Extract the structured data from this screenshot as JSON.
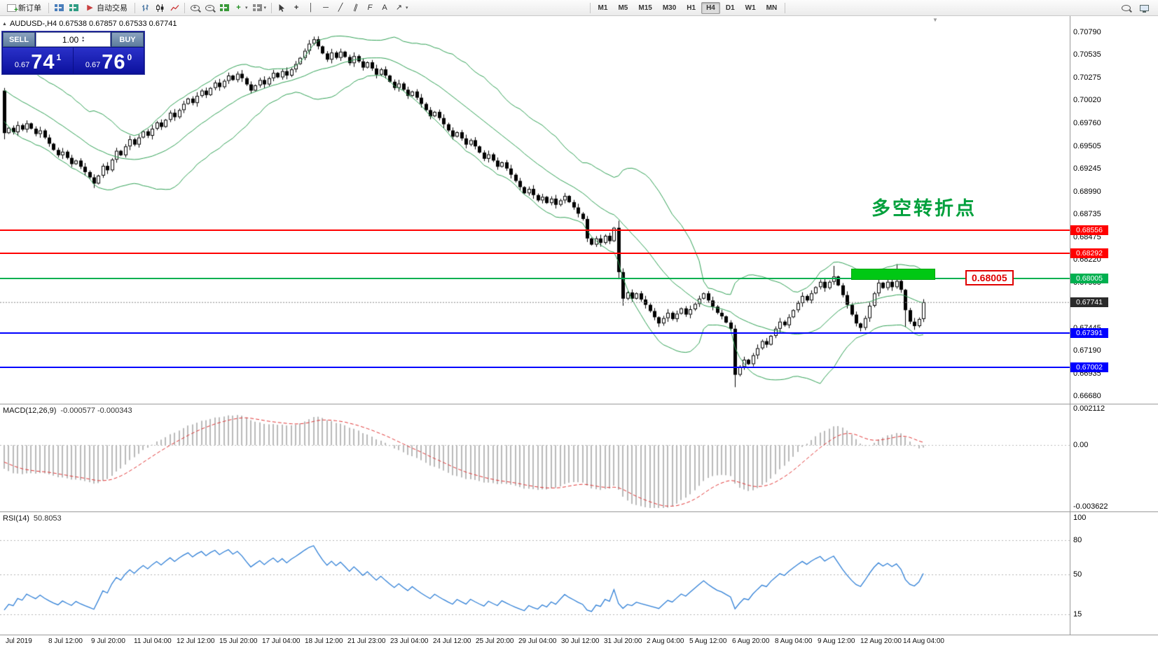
{
  "glyphs": {
    "collapse": "▲",
    "spin_up": "▴",
    "spin_down": "▾",
    "caret": "▾",
    "shift_marker": "▼"
  },
  "toolbar": {
    "groups": [
      {
        "name": "orders",
        "items": [
          {
            "name": "new-order-button",
            "label": "新订单",
            "icon": "new-order-icon"
          }
        ]
      },
      {
        "name": "trading",
        "items": [
          {
            "name": "charts-button",
            "icon": "chart-window-icon"
          },
          {
            "name": "profiles-button",
            "icon": "profiles-icon"
          },
          {
            "name": "auto-trading-button",
            "label": "自动交易",
            "icon": "play-icon"
          }
        ]
      },
      {
        "name": "chart-types",
        "items": [
          {
            "name": "bar-chart-type-button",
            "icon": "ohlc-bars-icon"
          },
          {
            "name": "candle-chart-type-button",
            "icon": "candles-icon"
          },
          {
            "name": "line-chart-type-button",
            "icon": "line-chart-icon"
          }
        ]
      },
      {
        "name": "zoom-tools",
        "items": [
          {
            "name": "zoom-in-button",
            "icon": "zoom-in-icon"
          },
          {
            "name": "zoom-out-button",
            "icon": "zoom-out-icon"
          },
          {
            "name": "tile-windows-button",
            "icon": "tile-windows-icon"
          },
          {
            "name": "indicators-button",
            "icon": "indicators-icon",
            "caret": true
          },
          {
            "name": "templates-button",
            "icon": "templates-icon",
            "caret": true
          }
        ]
      },
      {
        "name": "drawing-tools",
        "items": [
          {
            "name": "cursor-button",
            "icon": "cursor-icon"
          },
          {
            "name": "crosshair-button",
            "icon": "crosshair-icon"
          },
          {
            "name": "vertical-line-button",
            "icon": "vline-icon"
          },
          {
            "name": "horizontal-line-button",
            "icon": "hline-icon"
          },
          {
            "name": "trendline-button",
            "icon": "trendline-icon"
          },
          {
            "name": "channel-button",
            "icon": "channel-icon"
          },
          {
            "name": "fibonacci-button",
            "icon": "fibo-icon"
          },
          {
            "name": "text-button",
            "icon": "text-icon"
          },
          {
            "name": "arrows-button",
            "icon": "arrows-icon",
            "caret": true
          }
        ]
      }
    ],
    "timeframes": [
      "M1",
      "M5",
      "M15",
      "M30",
      "H1",
      "H4",
      "D1",
      "W1",
      "MN"
    ],
    "active_timeframe": "H4",
    "right_items": [
      {
        "name": "search-button",
        "icon": "search-icon"
      },
      {
        "name": "monitor-button",
        "icon": "monitor-icon"
      }
    ]
  },
  "quote_panel": {
    "symbol_line": "AUDUSD-,H4 0.67538 0.67857 0.67533 0.67741",
    "sell_label": "SELL",
    "buy_label": "BUY",
    "volume": "1.00",
    "sell_price": {
      "small": "0.67",
      "big": "74",
      "sup": "1"
    },
    "buy_price": {
      "small": "0.67",
      "big": "76",
      "sup": "0"
    }
  },
  "annotation": {
    "text": "多空转折点",
    "color": "#00a03c"
  },
  "price_label_box": "0.68005",
  "hlines": [
    {
      "price": 0.68556,
      "color": "#ff0000",
      "badge": "0.68556"
    },
    {
      "price": 0.68292,
      "color": "#ff0000",
      "badge": "0.68292"
    },
    {
      "price": 0.68005,
      "color": "#00b050",
      "badge": "0.68005"
    },
    {
      "price": 0.67391,
      "color": "#0000ff",
      "badge": "0.67391"
    },
    {
      "price": 0.67002,
      "color": "#0000ff",
      "badge": "0.67002"
    }
  ],
  "current_price": {
    "value": 0.67741,
    "badge": "0.67741"
  },
  "rectangle": {
    "x": 1215,
    "width": 120,
    "top_price": 0.6812,
    "bottom_price": 0.6799,
    "color": "#00c814"
  },
  "price_axis": {
    "min": 0.6668,
    "max": 0.7079,
    "ticks": [
      "0.70790",
      "0.70535",
      "0.70275",
      "0.70020",
      "0.69760",
      "0.69505",
      "0.69245",
      "0.68990",
      "0.68735",
      "0.68475",
      "0.68220",
      "0.67960",
      "0.67705",
      "0.67445",
      "0.67190",
      "0.66935",
      "0.66680"
    ]
  },
  "time_axis": [
    "Jul 2019",
    "8 Jul 12:00",
    "9 Jul 20:00",
    "11 Jul 04:00",
    "12 Jul 12:00",
    "15 Jul 20:00",
    "17 Jul 04:00",
    "18 Jul 12:00",
    "21 Jul 23:00",
    "23 Jul 04:00",
    "24 Jul 12:00",
    "25 Jul 20:00",
    "29 Jul 04:00",
    "30 Jul 12:00",
    "31 Jul 20:00",
    "2 Aug 04:00",
    "5 Aug 12:00",
    "6 Aug 20:00",
    "8 Aug 04:00",
    "9 Aug 12:00",
    "12 Aug 20:00",
    "14 Aug 04:00"
  ],
  "macd": {
    "label": "MACD(12,26,9)",
    "values": "-0.000577 -0.000343",
    "axis": [
      "0.002112",
      "0.00",
      "-0.003622"
    ],
    "max": 0.002112,
    "min": -0.003622
  },
  "rsi": {
    "label": "RSI(14)",
    "value": "50.8053",
    "axis": [
      "100",
      "80",
      "50",
      "15"
    ],
    "levels": [
      80,
      50,
      15
    ]
  },
  "chart_data": {
    "type": "candlestick",
    "symbol": "AUDUSD-",
    "timeframe": "H4",
    "title": "AUDUSD-,H4",
    "ylim": [
      0.6668,
      0.7079
    ],
    "bollinger": {
      "period": 20,
      "deviation": 2,
      "color": "#2fa054"
    },
    "warmup_closes": [
      0.7042,
      0.7036,
      0.7039,
      0.7031,
      0.7034,
      0.7026,
      0.7029,
      0.7021,
      0.7024,
      0.7016,
      0.7019,
      0.7011,
      0.7014,
      0.7006,
      0.7009,
      0.7001,
      0.7004,
      0.6996,
      0.6999,
      0.6991
    ],
    "closes": [
      0.6965,
      0.6971,
      0.6966,
      0.6974,
      0.6969,
      0.6976,
      0.697,
      0.6964,
      0.6968,
      0.696,
      0.6953,
      0.6946,
      0.694,
      0.6944,
      0.6937,
      0.693,
      0.6934,
      0.6927,
      0.6921,
      0.6915,
      0.6908,
      0.6917,
      0.6928,
      0.6923,
      0.6935,
      0.6945,
      0.694,
      0.695,
      0.6958,
      0.6952,
      0.696,
      0.6967,
      0.6962,
      0.697,
      0.6977,
      0.6972,
      0.698,
      0.6988,
      0.6983,
      0.6991,
      0.6998,
      0.7004,
      0.6999,
      0.7007,
      0.7013,
      0.7008,
      0.7016,
      0.7022,
      0.7017,
      0.7024,
      0.703,
      0.7025,
      0.7032,
      0.7027,
      0.702,
      0.7013,
      0.7019,
      0.7025,
      0.702,
      0.7027,
      0.7033,
      0.7028,
      0.7035,
      0.703,
      0.7037,
      0.7043,
      0.705,
      0.7058,
      0.7066,
      0.7071,
      0.7063,
      0.7055,
      0.7048,
      0.7056,
      0.705,
      0.7057,
      0.7051,
      0.7044,
      0.7052,
      0.7046,
      0.7039,
      0.7045,
      0.7038,
      0.7031,
      0.7037,
      0.703,
      0.7023,
      0.7016,
      0.7021,
      0.7014,
      0.7007,
      0.7012,
      0.7005,
      0.6998,
      0.6991,
      0.6984,
      0.6989,
      0.6982,
      0.6975,
      0.6968,
      0.6961,
      0.6966,
      0.6959,
      0.6952,
      0.6957,
      0.695,
      0.6943,
      0.6936,
      0.6941,
      0.6934,
      0.6927,
      0.6932,
      0.6925,
      0.6918,
      0.6911,
      0.6904,
      0.6897,
      0.6902,
      0.6895,
      0.6889,
      0.6893,
      0.6886,
      0.6891,
      0.6884,
      0.6889,
      0.6894,
      0.6887,
      0.6881,
      0.6874,
      0.6868,
      0.6846,
      0.6839,
      0.6846,
      0.6841,
      0.6849,
      0.6843,
      0.6858,
      0.6808,
      0.6778,
      0.6785,
      0.6778,
      0.6784,
      0.6777,
      0.6771,
      0.6764,
      0.6757,
      0.675,
      0.6756,
      0.6762,
      0.6755,
      0.6761,
      0.6767,
      0.676,
      0.6766,
      0.6772,
      0.6778,
      0.6784,
      0.6776,
      0.6769,
      0.6762,
      0.6758,
      0.6751,
      0.6744,
      0.6692,
      0.6701,
      0.6709,
      0.6704,
      0.6714,
      0.6722,
      0.673,
      0.6726,
      0.6736,
      0.6744,
      0.6752,
      0.6748,
      0.6757,
      0.6765,
      0.6773,
      0.6781,
      0.6776,
      0.6784,
      0.6791,
      0.6797,
      0.679,
      0.6797,
      0.6803,
      0.6793,
      0.6782,
      0.6771,
      0.676,
      0.675,
      0.6745,
      0.6756,
      0.677,
      0.6784,
      0.6796,
      0.679,
      0.6797,
      0.6791,
      0.6798,
      0.6788,
      0.6765,
      0.6752,
      0.6747,
      0.6755,
      0.6774
    ],
    "overrides": {
      "0": {
        "open": 0.7013,
        "high": 0.7016,
        "low": 0.6958
      },
      "20": {
        "low": 0.6903
      },
      "69": {
        "high": 0.7074
      },
      "130": {
        "low": 0.6842
      },
      "137": {
        "high": 0.6866,
        "low": 0.68
      },
      "138": {
        "low": 0.677
      },
      "146": {
        "low": 0.6746
      },
      "163": {
        "low": 0.6678
      },
      "185": {
        "high": 0.6815
      },
      "191": {
        "low": 0.6741
      },
      "199": {
        "high": 0.6817
      },
      "201": {
        "low": 0.6746
      }
    }
  }
}
